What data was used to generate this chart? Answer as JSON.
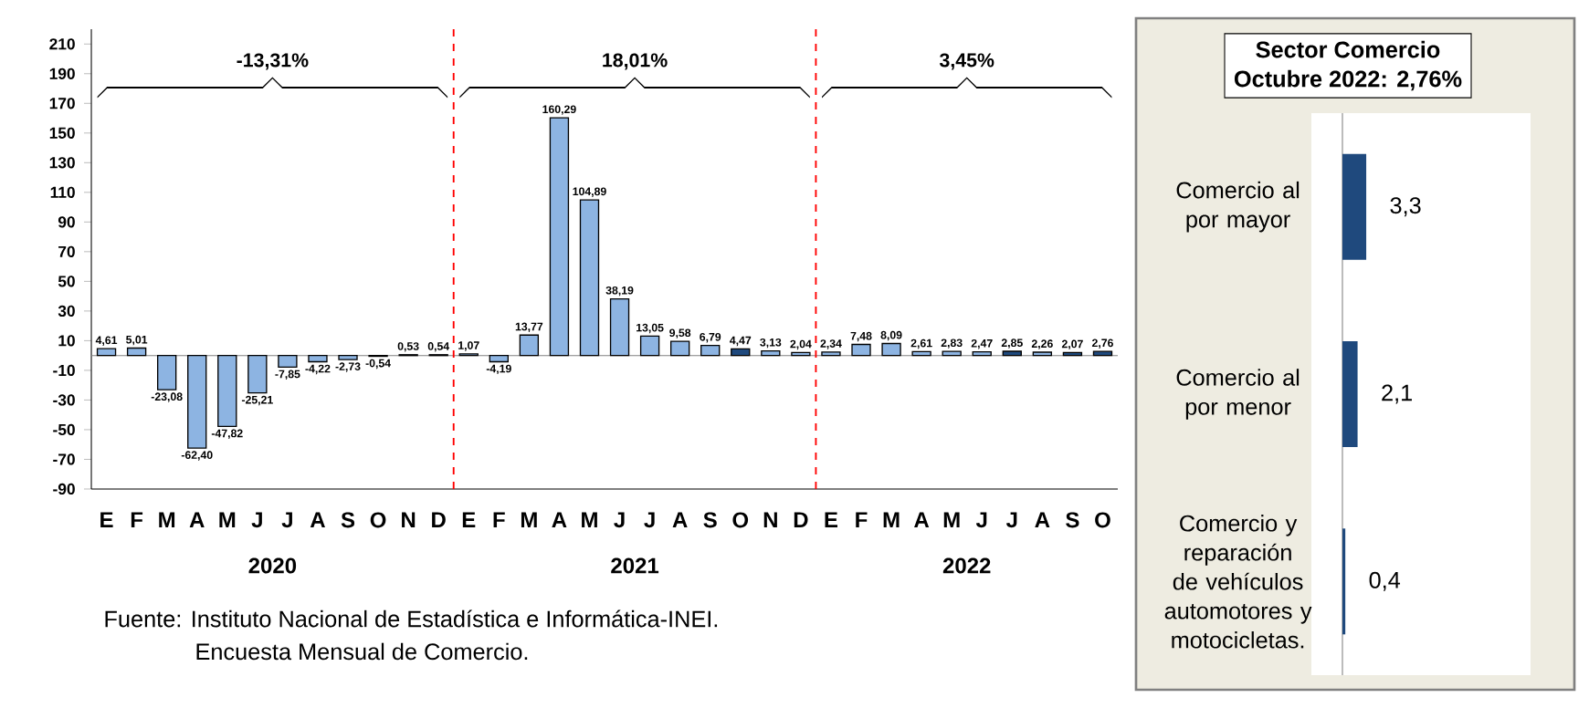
{
  "chart_data": [
    {
      "type": "bar",
      "categories": [
        "E",
        "F",
        "M",
        "A",
        "M",
        "J",
        "J",
        "A",
        "S",
        "O",
        "N",
        "D",
        "E",
        "F",
        "M",
        "A",
        "M",
        "J",
        "J",
        "A",
        "S",
        "O",
        "N",
        "D",
        "E",
        "F",
        "M",
        "A",
        "M",
        "J",
        "J",
        "A",
        "S",
        "O"
      ],
      "values": [
        4.61,
        5.01,
        -23.08,
        -62.4,
        -47.82,
        -25.21,
        -7.85,
        -4.22,
        -2.73,
        -0.54,
        0.53,
        0.54,
        1.07,
        -4.19,
        13.77,
        160.29,
        104.89,
        38.19,
        13.05,
        9.58,
        6.79,
        4.47,
        3.13,
        2.04,
        2.34,
        7.48,
        8.09,
        2.61,
        2.83,
        2.47,
        2.85,
        2.26,
        2.07,
        2.76
      ],
      "value_labels": [
        "4,61",
        "5,01",
        "-23,08",
        "-62,40",
        "-47,82",
        "-25,21",
        "-7,85",
        "-4,22",
        "-2,73",
        "-0,54",
        "0,53",
        "0,54",
        "1,07",
        "-4,19",
        "13,77",
        "160,29",
        "104,89",
        "38,19",
        "13,05",
        "9,58",
        "6,79",
        "4,47",
        "3,13",
        "2,04",
        "2,34",
        "7,48",
        "8,09",
        "2,61",
        "2,83",
        "2,47",
        "2,85",
        "2,26",
        "2,07",
        "2,76"
      ],
      "colors": [
        "#8db4e2",
        "#8db4e2",
        "#8db4e2",
        "#8db4e2",
        "#8db4e2",
        "#8db4e2",
        "#8db4e2",
        "#8db4e2",
        "#8db4e2",
        "#8db4e2",
        "#8db4e2",
        "#8db4e2",
        "#8db4e2",
        "#8db4e2",
        "#8db4e2",
        "#8db4e2",
        "#8db4e2",
        "#8db4e2",
        "#8db4e2",
        "#8db4e2",
        "#8db4e2",
        "#1f497d",
        "#8db4e2",
        "#8db4e2",
        "#8db4e2",
        "#8db4e2",
        "#8db4e2",
        "#8db4e2",
        "#8db4e2",
        "#8db4e2",
        "#1f497d",
        "#8db4e2",
        "#1f497d",
        "#1f497d"
      ],
      "ylim": [
        -90,
        220
      ],
      "yticks": [
        -90,
        -70,
        -50,
        -30,
        -10,
        10,
        30,
        50,
        70,
        90,
        110,
        130,
        150,
        170,
        190,
        210
      ],
      "annotations": [
        "-13,31%",
        "18,01%",
        "3,45%",
        "2020",
        "2021",
        "2022",
        "Fuente: Instituto Nacional de Estadística e Informática-INEI.",
        "Encuesta Mensual de Comercio."
      ]
    },
    {
      "type": "bar",
      "orientation": "horizontal",
      "title": "Sector Comercio",
      "subtitle": "Octubre 2022: 2,76%",
      "categories": [
        "Comercio al por mayor",
        "Comercio al por menor",
        "Comercio y reparación de vehículos automotores y motocicletas."
      ],
      "values": [
        3.3,
        2.1,
        0.4
      ],
      "value_labels": [
        "3,3",
        "2,1",
        "0,4"
      ],
      "color": "#1f497d"
    }
  ]
}
